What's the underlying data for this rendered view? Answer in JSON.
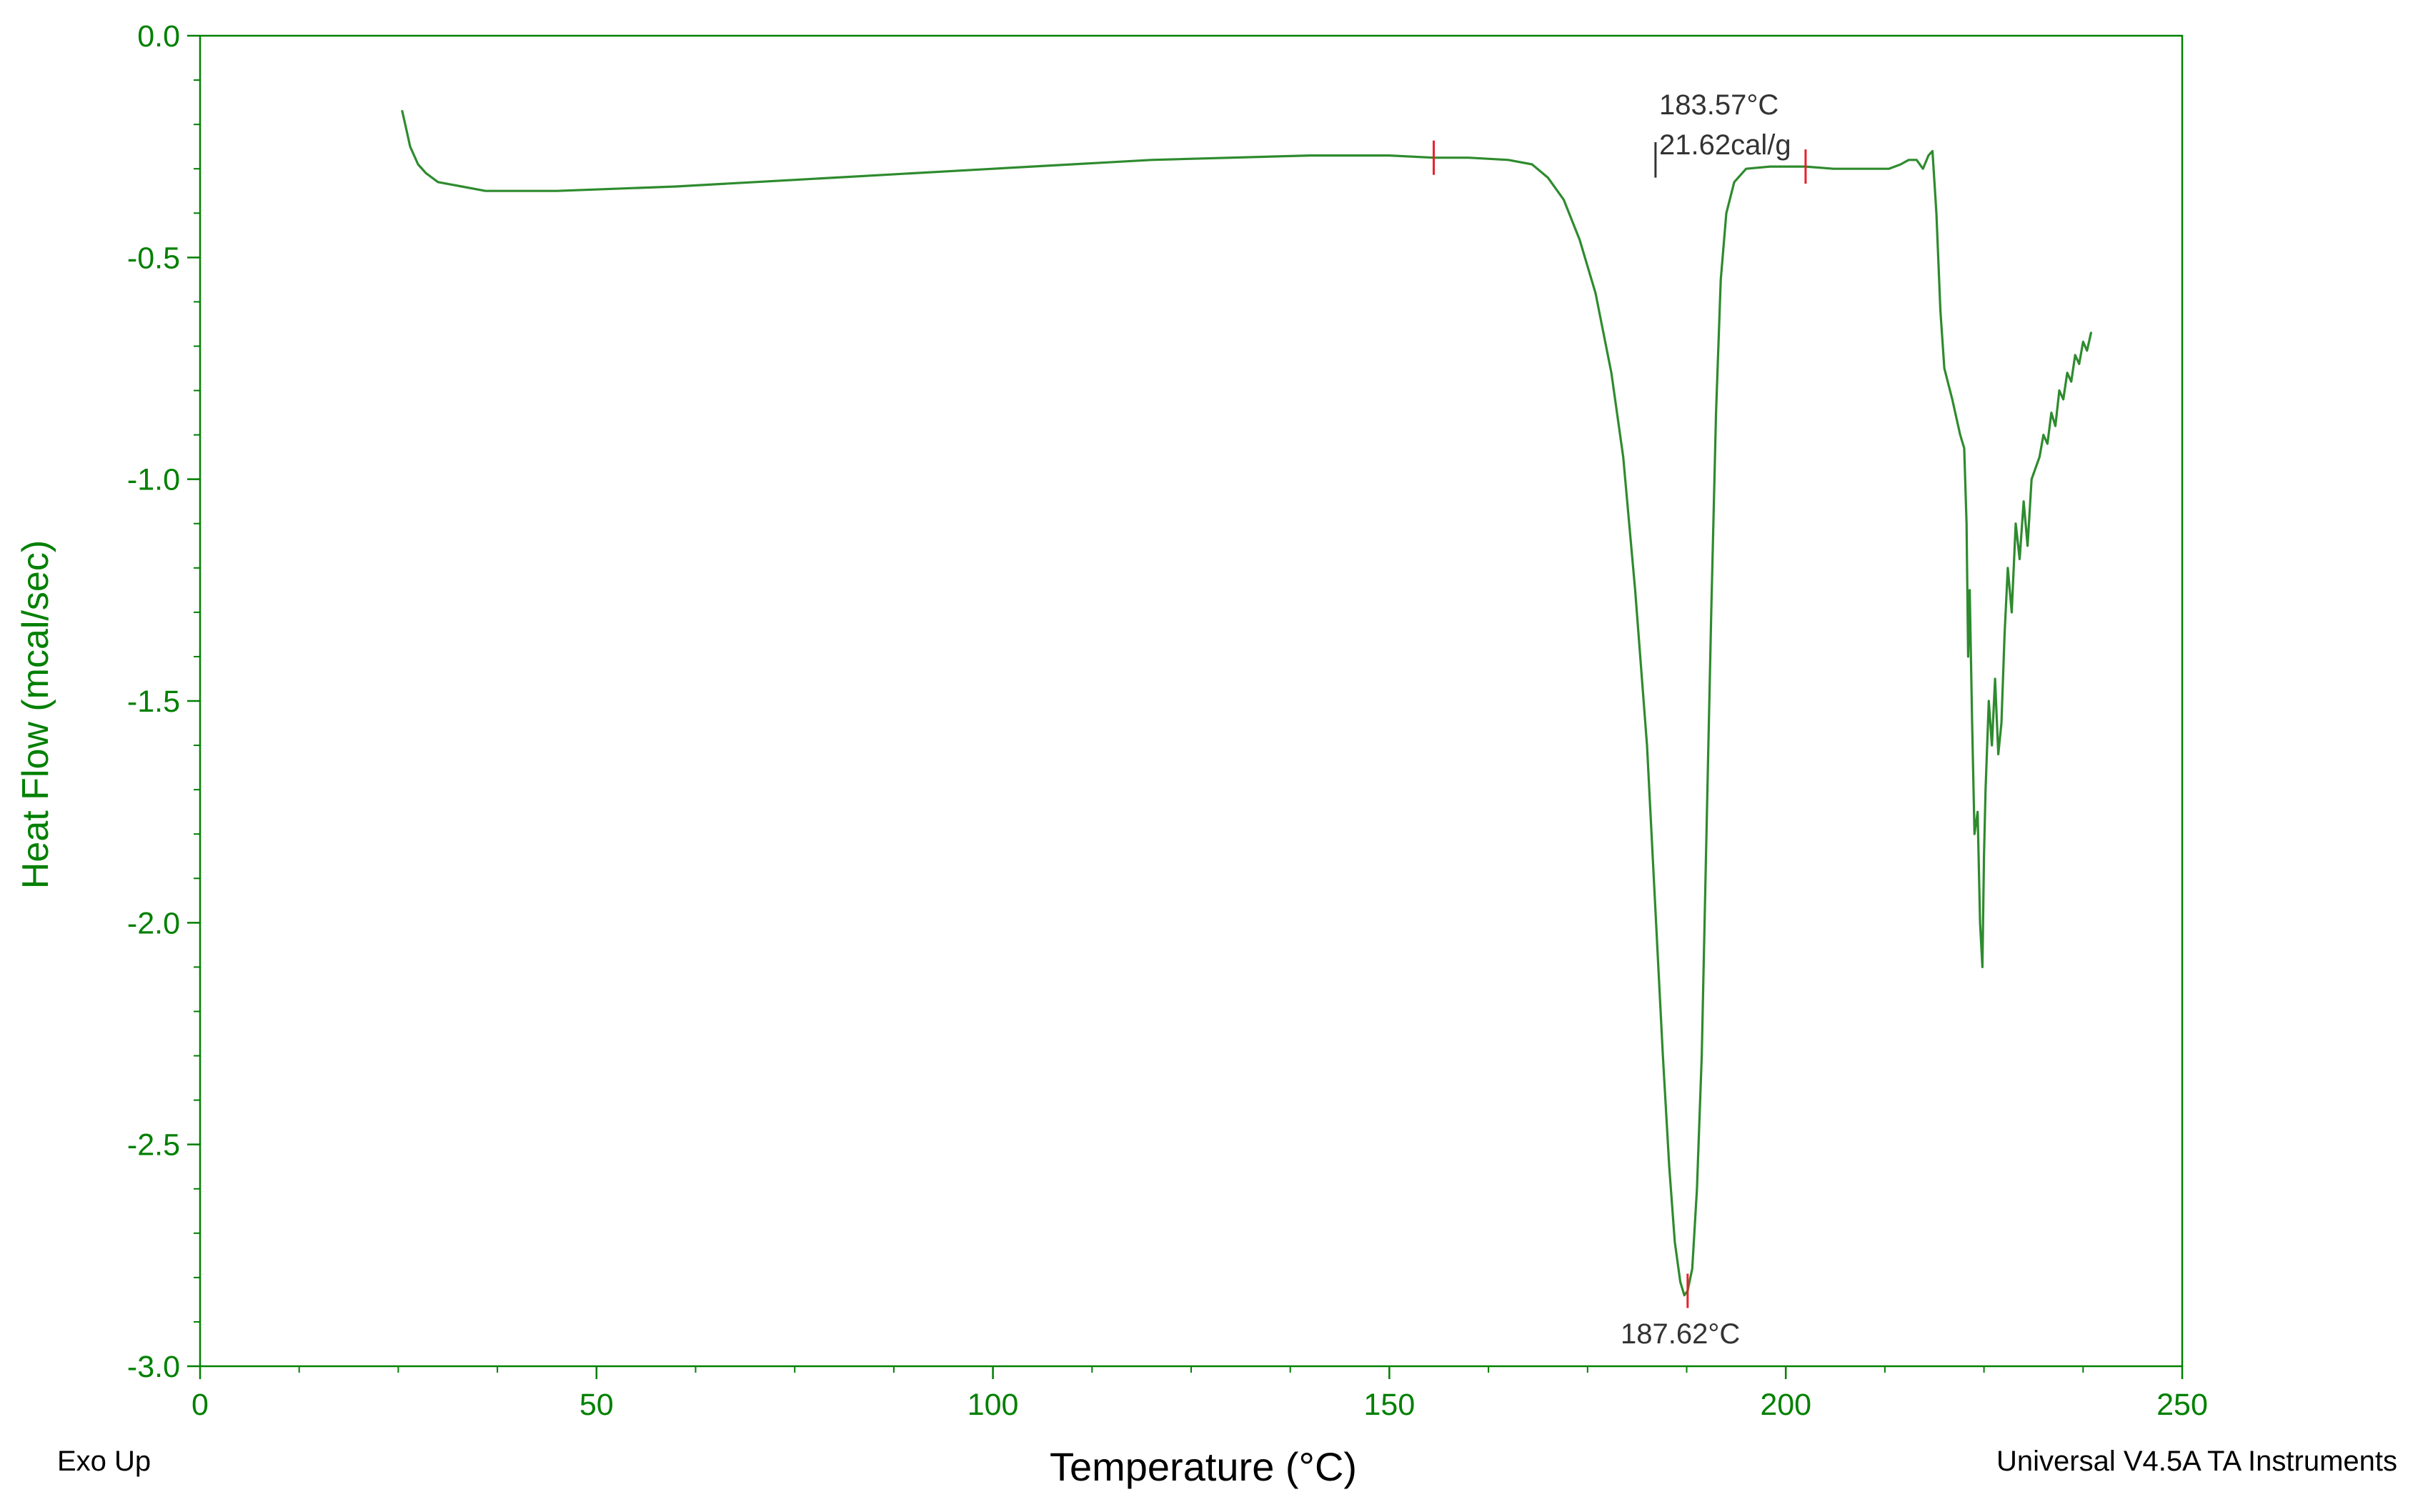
{
  "colors": {
    "axis": "#008000",
    "curve": "#2e8b2e",
    "marker": "#e8202a",
    "annotation": "#333333",
    "footer": "#000000",
    "background": "#ffffff"
  },
  "chart_data": {
    "type": "line",
    "title": "",
    "xlabel": "Temperature (°C)",
    "ylabel": "Heat Flow (mcal/sec)",
    "xlim": [
      0,
      250
    ],
    "ylim": [
      -3.0,
      0.0
    ],
    "x_ticks": [
      0,
      50,
      100,
      150,
      200,
      250
    ],
    "x_tick_labels": [
      "0",
      "50",
      "100",
      "150",
      "200",
      "250"
    ],
    "y_ticks": [
      0.0,
      -0.5,
      -1.0,
      -1.5,
      -2.0,
      -2.5,
      -3.0
    ],
    "y_tick_labels": [
      "0.0",
      "-0.5",
      "-1.0",
      "-1.5",
      "-2.0",
      "-2.5",
      "-3.0"
    ],
    "grid": false,
    "legend": "none",
    "series": [
      {
        "x": [
          25.5,
          26.0,
          26.5,
          27.5,
          28.5,
          30.0,
          33.0,
          36.0,
          45.0,
          60.0,
          80.0,
          100.0,
          120.0,
          140.0,
          150.0,
          155.6,
          160.0,
          165.0,
          168.0,
          170.0,
          172.0,
          174.0,
          176.0,
          178.0,
          179.5,
          181.0,
          182.5,
          183.5,
          184.5,
          185.3,
          186.0,
          186.7,
          187.2,
          187.62,
          188.2,
          188.8,
          189.4,
          190.0,
          190.6,
          191.2,
          191.8,
          192.5,
          193.5,
          195.0,
          198.0,
          202.5,
          206.0,
          210.0,
          213.0,
          214.5,
          215.5,
          216.5,
          217.3,
          218.0,
          218.5,
          219.0,
          219.5,
          220.0,
          221.0,
          222.0,
          222.5,
          222.8,
          223.0,
          223.2,
          223.5,
          223.8,
          224.2,
          224.5,
          224.8,
          225.0,
          225.2,
          225.6,
          226.0,
          226.4,
          226.8,
          227.2,
          227.6,
          228.0,
          228.5,
          229.0,
          229.5,
          230.0,
          230.5,
          231.0,
          232.0,
          232.5,
          233.0,
          233.5,
          234.0,
          234.5,
          235.0,
          235.5,
          236.0,
          236.5,
          237.0,
          237.5,
          238.0,
          238.5
        ],
        "y": [
          -0.17,
          -0.21,
          -0.25,
          -0.29,
          -0.31,
          -0.33,
          -0.34,
          -0.35,
          -0.35,
          -0.34,
          -0.32,
          -0.3,
          -0.28,
          -0.27,
          -0.27,
          -0.275,
          -0.275,
          -0.28,
          -0.29,
          -0.32,
          -0.37,
          -0.46,
          -0.58,
          -0.76,
          -0.95,
          -1.25,
          -1.6,
          -1.95,
          -2.3,
          -2.55,
          -2.72,
          -2.81,
          -2.84,
          -2.83,
          -2.78,
          -2.6,
          -2.3,
          -1.8,
          -1.3,
          -0.85,
          -0.55,
          -0.4,
          -0.33,
          -0.3,
          -0.295,
          -0.295,
          -0.3,
          -0.3,
          -0.3,
          -0.29,
          -0.28,
          -0.28,
          -0.3,
          -0.27,
          -0.26,
          -0.4,
          -0.62,
          -0.75,
          -0.82,
          -0.9,
          -0.93,
          -1.1,
          -1.4,
          -1.25,
          -1.55,
          -1.8,
          -1.75,
          -2.0,
          -2.1,
          -1.85,
          -1.7,
          -1.5,
          -1.6,
          -1.45,
          -1.62,
          -1.55,
          -1.35,
          -1.2,
          -1.3,
          -1.1,
          -1.18,
          -1.05,
          -1.15,
          -1.0,
          -0.95,
          -0.9,
          -0.92,
          -0.85,
          -0.88,
          -0.8,
          -0.82,
          -0.76,
          -0.78,
          -0.72,
          -0.74,
          -0.69,
          -0.71,
          -0.67
        ]
      }
    ],
    "markers_x": [
      155.6,
      187.62,
      202.5
    ],
    "annotation_marker_x": 183.57,
    "annotations": {
      "onset_temp": "183.57°C",
      "enthalpy": "21.62cal/g",
      "peak_temp": "187.62°C"
    },
    "footer_left": "Exo Up",
    "footer_right": "Universal V4.5A TA Instruments"
  }
}
